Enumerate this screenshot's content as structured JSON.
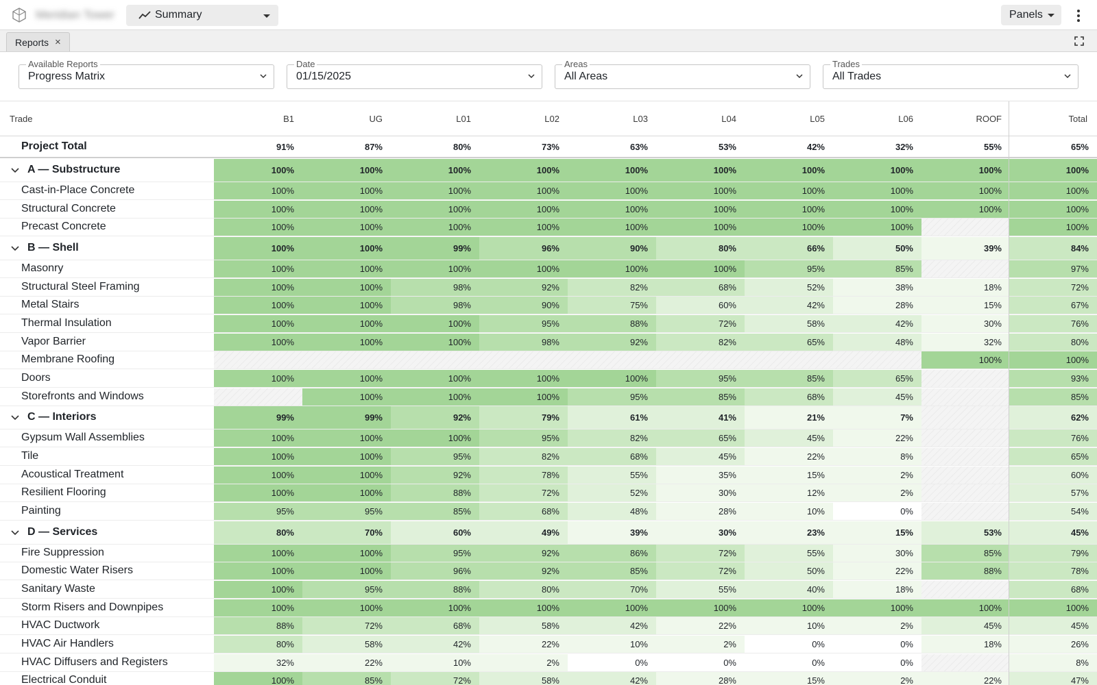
{
  "app": {
    "project_name": "Meridian Tower",
    "view": "Summary",
    "panels_label": "Panels"
  },
  "tabs": [
    {
      "label": "Reports",
      "close": "×"
    }
  ],
  "filters": [
    {
      "label": "Available Reports",
      "value": "Progress Matrix"
    },
    {
      "label": "Date",
      "value": "01/15/2025"
    },
    {
      "label": "Areas",
      "value": "All Areas"
    },
    {
      "label": "Trades",
      "value": "All Trades"
    }
  ],
  "grid": {
    "trade_header": "Trade",
    "columns": [
      "B1",
      "UG",
      "L01",
      "L02",
      "L03",
      "L04",
      "L05",
      "L06",
      "ROOF"
    ],
    "total_header": "Total",
    "project_total": {
      "label": "Project Total",
      "values": [
        91,
        87,
        80,
        73,
        63,
        53,
        42,
        32,
        55
      ],
      "total": 65
    },
    "rows": [
      {
        "type": "group",
        "name": "A — Substructure",
        "values": [
          100,
          100,
          100,
          100,
          100,
          100,
          100,
          100,
          100
        ],
        "total": 100
      },
      {
        "type": "item",
        "name": "Cast-in-Place Concrete",
        "values": [
          100,
          100,
          100,
          100,
          100,
          100,
          100,
          100,
          100
        ],
        "total": 100
      },
      {
        "type": "item",
        "name": "Structural Concrete",
        "values": [
          100,
          100,
          100,
          100,
          100,
          100,
          100,
          100,
          100
        ],
        "total": 100
      },
      {
        "type": "item",
        "name": "Precast Concrete",
        "values": [
          100,
          100,
          100,
          100,
          100,
          100,
          100,
          100,
          null
        ],
        "total": 100
      },
      {
        "type": "group",
        "name": "B — Shell",
        "values": [
          100,
          100,
          99,
          96,
          90,
          80,
          66,
          50,
          39
        ],
        "total": 84
      },
      {
        "type": "item",
        "name": "Masonry",
        "values": [
          100,
          100,
          100,
          100,
          100,
          100,
          95,
          85,
          null
        ],
        "total": 97
      },
      {
        "type": "item",
        "name": "Structural Steel Framing",
        "values": [
          100,
          100,
          98,
          92,
          82,
          68,
          52,
          38,
          18
        ],
        "total": 72
      },
      {
        "type": "item",
        "name": "Metal Stairs",
        "values": [
          100,
          100,
          98,
          90,
          75,
          60,
          42,
          28,
          15
        ],
        "total": 67
      },
      {
        "type": "item",
        "name": "Thermal Insulation",
        "values": [
          100,
          100,
          100,
          95,
          88,
          72,
          58,
          42,
          30
        ],
        "total": 76
      },
      {
        "type": "item",
        "name": "Vapor Barrier",
        "values": [
          100,
          100,
          100,
          98,
          92,
          82,
          65,
          48,
          32
        ],
        "total": 80
      },
      {
        "type": "item",
        "name": "Membrane Roofing",
        "values": [
          null,
          null,
          null,
          null,
          null,
          null,
          null,
          null,
          100
        ],
        "total": 100
      },
      {
        "type": "item",
        "name": "Doors",
        "values": [
          100,
          100,
          100,
          100,
          100,
          95,
          85,
          65,
          null
        ],
        "total": 93
      },
      {
        "type": "item",
        "name": "Storefronts and Windows",
        "values": [
          null,
          100,
          100,
          100,
          95,
          85,
          68,
          45,
          null
        ],
        "total": 85
      },
      {
        "type": "group",
        "name": "C — Interiors",
        "values": [
          99,
          99,
          92,
          79,
          61,
          41,
          21,
          7,
          null
        ],
        "total": 62
      },
      {
        "type": "item",
        "name": "Gypsum Wall Assemblies",
        "values": [
          100,
          100,
          100,
          95,
          82,
          65,
          45,
          22,
          null
        ],
        "total": 76
      },
      {
        "type": "item",
        "name": "Tile",
        "values": [
          100,
          100,
          95,
          82,
          68,
          45,
          22,
          8,
          null
        ],
        "total": 65
      },
      {
        "type": "item",
        "name": "Acoustical Treatment",
        "values": [
          100,
          100,
          92,
          78,
          55,
          35,
          15,
          2,
          null
        ],
        "total": 60
      },
      {
        "type": "item",
        "name": "Resilient Flooring",
        "values": [
          100,
          100,
          88,
          72,
          52,
          30,
          12,
          2,
          null
        ],
        "total": 57
      },
      {
        "type": "item",
        "name": "Painting",
        "values": [
          95,
          95,
          85,
          68,
          48,
          28,
          10,
          0,
          null
        ],
        "total": 54
      },
      {
        "type": "group",
        "name": "D — Services",
        "values": [
          80,
          70,
          60,
          49,
          39,
          30,
          23,
          15,
          53
        ],
        "total": 45
      },
      {
        "type": "item",
        "name": "Fire Suppression",
        "values": [
          100,
          100,
          95,
          92,
          86,
          72,
          55,
          30,
          85
        ],
        "total": 79
      },
      {
        "type": "item",
        "name": "Domestic Water Risers",
        "values": [
          100,
          100,
          96,
          92,
          85,
          72,
          50,
          22,
          88
        ],
        "total": 78
      },
      {
        "type": "item",
        "name": "Sanitary Waste",
        "values": [
          100,
          95,
          88,
          80,
          70,
          55,
          40,
          18,
          null
        ],
        "total": 68
      },
      {
        "type": "item",
        "name": "Storm Risers and Downpipes",
        "values": [
          100,
          100,
          100,
          100,
          100,
          100,
          100,
          100,
          100
        ],
        "total": 100
      },
      {
        "type": "item",
        "name": "HVAC Ductwork",
        "values": [
          88,
          72,
          68,
          58,
          42,
          22,
          10,
          2,
          45
        ],
        "total": 45
      },
      {
        "type": "item",
        "name": "HVAC Air Handlers",
        "values": [
          80,
          58,
          42,
          22,
          10,
          2,
          0,
          0,
          18
        ],
        "total": 26
      },
      {
        "type": "item",
        "name": "HVAC Diffusers and Registers",
        "values": [
          32,
          22,
          10,
          2,
          0,
          0,
          0,
          0,
          null
        ],
        "total": 8
      },
      {
        "type": "item",
        "name": "Electrical Conduit",
        "values": [
          100,
          85,
          72,
          58,
          42,
          28,
          15,
          2,
          22
        ],
        "total": 47
      }
    ]
  },
  "colors": {
    "full": "#a3d597",
    "high": "#b7dfac",
    "mid": "#cbe8c2",
    "low": "#e0f1da",
    "min": "#f0f8ec",
    "zero": "#ffffff"
  },
  "icons": {
    "logo": "cube-logo-icon",
    "view": "trend-line-icon",
    "menu": "kebab-menu-icon",
    "fullscreen": "fullscreen-icon",
    "dropdown": "chevron-down-icon",
    "group_toggle": "chevron-down-icon"
  }
}
